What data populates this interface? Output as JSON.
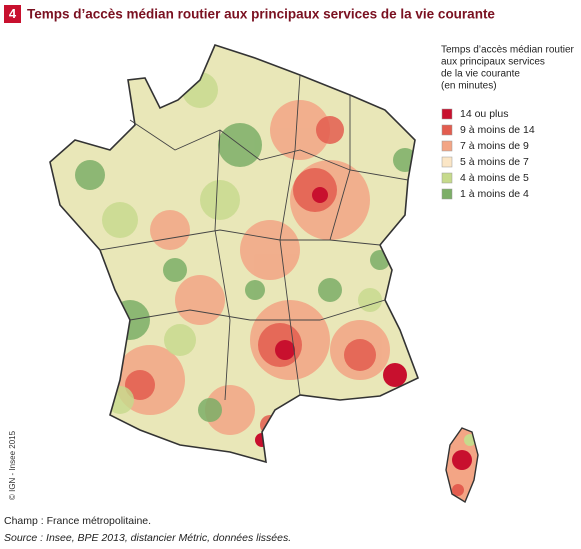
{
  "figure_number": "4",
  "title": "Temps d’accès médian routier aux principaux services de la vie courante",
  "legend": {
    "title_lines": [
      "Temps d’accès médian routier",
      "aux principaux services",
      "de la vie courante",
      "(en minutes)"
    ],
    "items": [
      {
        "label": "14 ou plus",
        "color": "#c8102e"
      },
      {
        "label": "9 à moins de 14",
        "color": "#e35d4f"
      },
      {
        "label": "7 à moins de 9",
        "color": "#f3a585"
      },
      {
        "label": "5 à moins de 7",
        "color": "#fbe6c6"
      },
      {
        "label": "4 à moins de 5",
        "color": "#c6da8c"
      },
      {
        "label": "1 à moins de 4",
        "color": "#7cae67"
      }
    ]
  },
  "copyright": "© IGN - Insee 2015",
  "notes": [
    "Champ : France métropolitaine.",
    "Source : Insee, BPE 2013, distancier Métric, données lissées."
  ]
}
